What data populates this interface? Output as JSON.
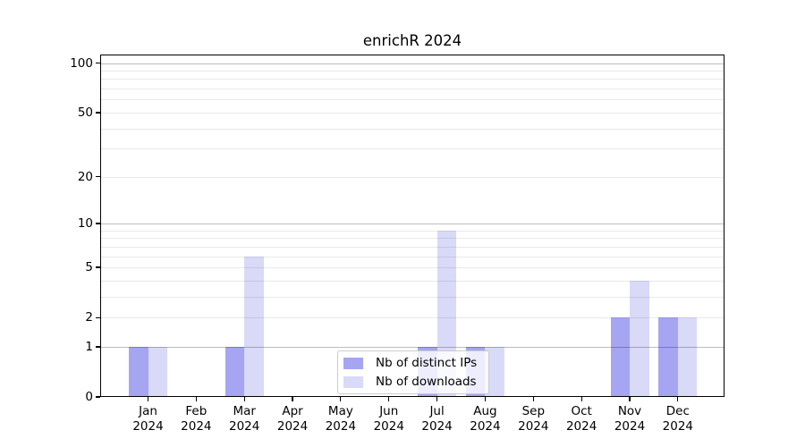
{
  "title": "enrichR 2024",
  "legend": {
    "entries": [
      {
        "label": "Nb of distinct IPs"
      },
      {
        "label": "Nb of downloads"
      }
    ]
  },
  "chart_data": {
    "type": "bar",
    "title": "enrichR 2024",
    "xlabel": "",
    "ylabel": "",
    "categories": [
      "Jan",
      "Feb",
      "Mar",
      "Apr",
      "May",
      "Jun",
      "Jul",
      "Aug",
      "Sep",
      "Oct",
      "Nov",
      "Dec"
    ],
    "year_label": "2024",
    "series": [
      {
        "name": "Nb of distinct IPs",
        "color": "#a5a5f2",
        "values": [
          1,
          0,
          1,
          0,
          0,
          0,
          1,
          1,
          0,
          0,
          2,
          2
        ]
      },
      {
        "name": "Nb of downloads",
        "color": "#d9d9f8",
        "values": [
          1,
          0,
          6,
          0,
          0,
          0,
          9,
          1,
          0,
          0,
          4,
          2
        ]
      }
    ],
    "y_axis": {
      "scale": "log1p",
      "ticks": [
        {
          "label": "0",
          "value": 0
        },
        {
          "label": "1",
          "value": 1
        },
        {
          "label": "2",
          "value": 2
        },
        {
          "label": "5",
          "value": 5
        },
        {
          "label": "10",
          "value": 10
        },
        {
          "label": "20",
          "value": 20
        },
        {
          "label": "50",
          "value": 50
        },
        {
          "label": "100",
          "value": 100
        }
      ],
      "ylim": [
        0,
        113
      ]
    },
    "grid": {
      "major_values": [
        1,
        10,
        100
      ],
      "minor_values": [
        2,
        3,
        4,
        5,
        6,
        7,
        8,
        9,
        20,
        30,
        40,
        50,
        60,
        70,
        80,
        90
      ]
    },
    "legend_position": "lower center"
  },
  "colors": {
    "bar_distinct_ips": "#a5a5f2",
    "bar_downloads": "#d9d9f8",
    "major_grid": "#bdbdbd",
    "minor_grid": "#e8e8e8",
    "axis": "#000000"
  }
}
